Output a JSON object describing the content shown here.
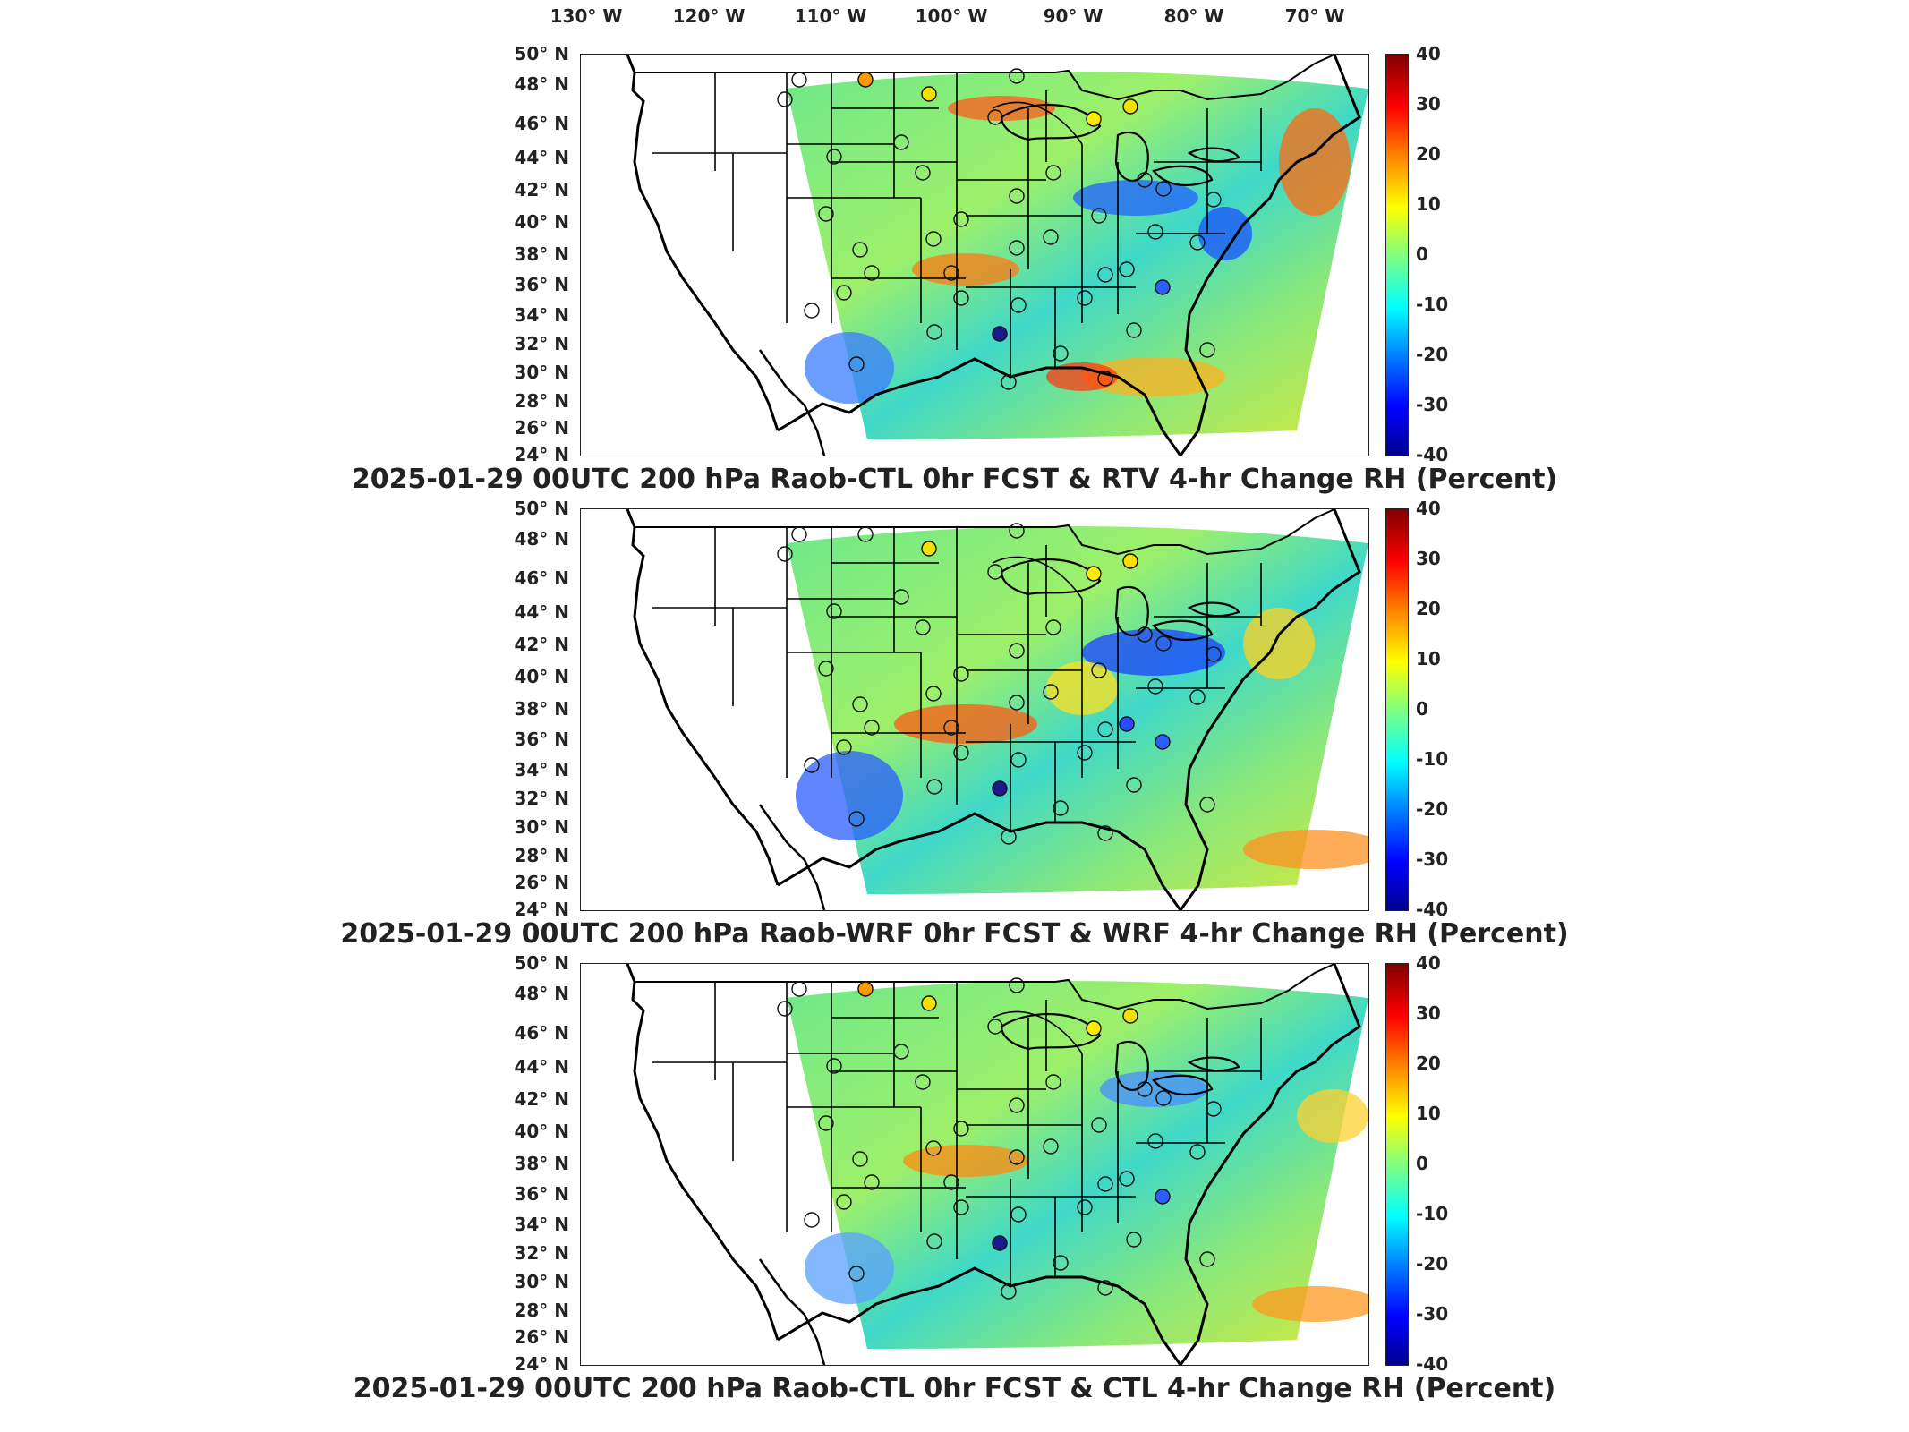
{
  "longitude_labels": [
    "130° W",
    "120° W",
    "110° W",
    "100° W",
    "90° W",
    "80° W",
    "70° W"
  ],
  "latitude_labels": [
    "50° N",
    "48° N",
    "46° N",
    "44° N",
    "42° N",
    "40° N",
    "38° N",
    "36° N",
    "34° N",
    "32° N",
    "30° N",
    "28° N",
    "26° N",
    "24° N"
  ],
  "colorbar_ticks": [
    "40",
    "30",
    "20",
    "10",
    "0",
    "-10",
    "-20",
    "-30",
    "-40"
  ],
  "colorbar_range": [
    -40,
    40
  ],
  "colormap": [
    "#00008f",
    "#0000ff",
    "#0080ff",
    "#00ffff",
    "#80ff80",
    "#ffff00",
    "#ff8000",
    "#ff0000",
    "#800000"
  ],
  "panels": [
    {
      "title": "2025-01-29 00UTC 200 hPa Raob-CTL 0hr FCST & RTV 4-hr Change RH (Percent)"
    },
    {
      "title": "2025-01-29 00UTC 200 hPa Raob-WRF 0hr FCST & WRF 4-hr Change RH (Percent)"
    },
    {
      "title": "2025-01-29 00UTC 200 hPa Raob-CTL 0hr FCST & CTL 4-hr Change RH (Percent)"
    }
  ]
}
